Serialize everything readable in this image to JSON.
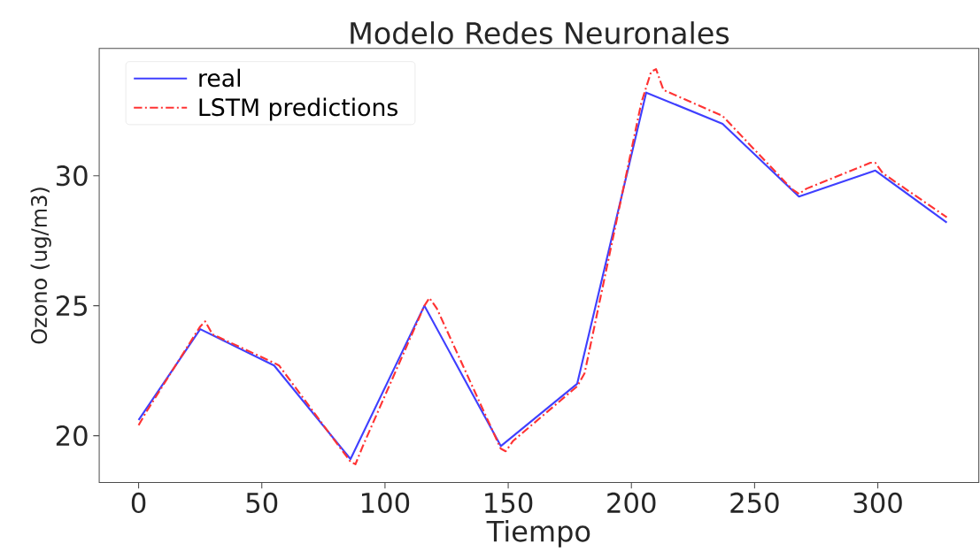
{
  "chart_data": {
    "type": "line",
    "title": "Modelo Redes Neuronales",
    "xlabel": "Tiempo",
    "ylabel": "Ozono (ug/m3)",
    "xlim": [
      -16,
      341
    ],
    "ylim": [
      18.2,
      34.9
    ],
    "xticks": [
      0,
      50,
      100,
      150,
      200,
      250,
      300
    ],
    "yticks": [
      20,
      25,
      30
    ],
    "grid": false,
    "legend": "top left",
    "series": [
      {
        "name": "real",
        "color": "#3f3fff",
        "line_style": "solid",
        "x": [
          0,
          25,
          55,
          86,
          116,
          147,
          178,
          206,
          237,
          268,
          299,
          328
        ],
        "values": [
          20.6,
          24.1,
          22.7,
          19.1,
          25.0,
          19.6,
          22.0,
          33.2,
          32.0,
          29.2,
          30.2,
          28.2
        ]
      },
      {
        "name": "LSTM predictions",
        "color": "#ff3333",
        "line_style": "dashdot",
        "x": [
          0,
          3,
          25,
          27,
          30,
          55,
          57,
          86,
          88,
          91,
          116,
          118,
          121,
          147,
          149,
          152,
          178,
          181,
          204,
          208,
          210,
          213,
          237,
          265,
          268,
          271,
          297,
          299,
          302,
          328
        ],
        "values": [
          20.4,
          20.9,
          24.2,
          24.4,
          23.9,
          22.8,
          22.7,
          19.0,
          18.9,
          19.6,
          25.0,
          25.3,
          24.9,
          19.5,
          19.4,
          19.8,
          21.9,
          22.4,
          32.8,
          34.0,
          34.1,
          33.3,
          32.3,
          29.5,
          29.3,
          29.5,
          30.5,
          30.5,
          30.1,
          28.4
        ]
      }
    ]
  }
}
